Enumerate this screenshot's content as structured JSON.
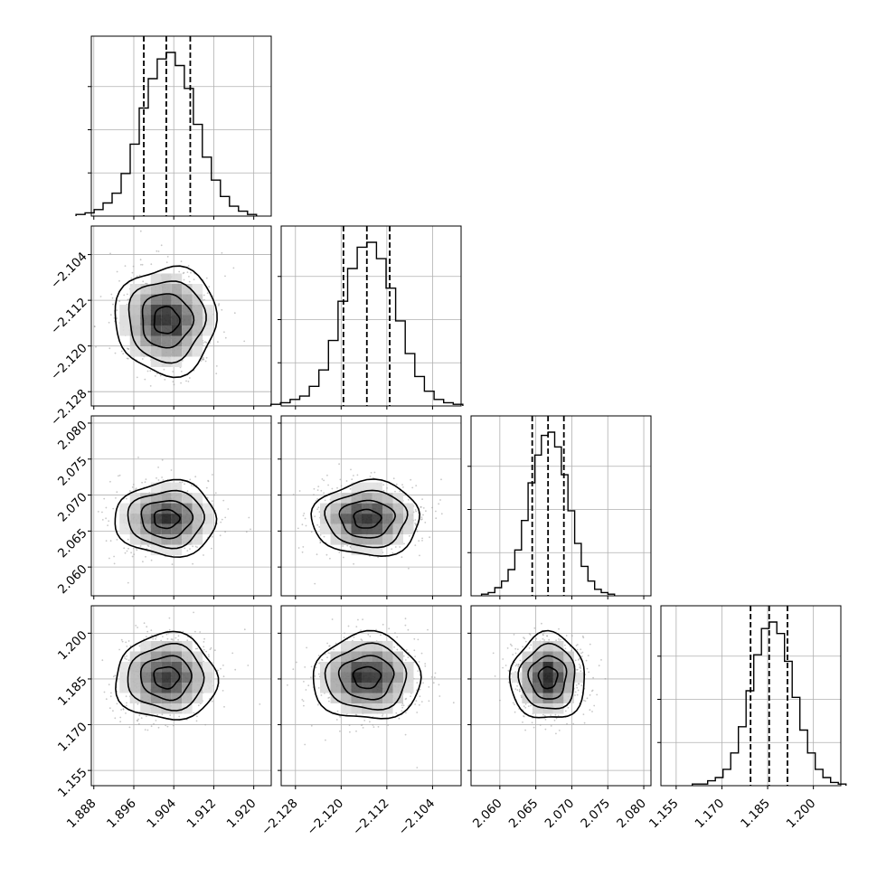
{
  "chart_data": {
    "type": "corner",
    "grid": true,
    "parameters": [
      {
        "ticks": [
          1.888,
          1.896,
          1.904,
          1.912,
          1.92
        ],
        "tick_labels": [
          "1.888",
          "1.896",
          "1.904",
          "1.912",
          "1.920"
        ],
        "range": [
          1.8875,
          1.9235
        ],
        "mean": 1.9025,
        "sigma": 0.0043,
        "quantiles": [
          1.898,
          1.9025,
          1.9073
        ]
      },
      {
        "ticks": [
          -2.128,
          -2.12,
          -2.112,
          -2.104
        ],
        "tick_labels": [
          "−2.128",
          "−2.120",
          "−2.112",
          "−2.104"
        ],
        "range": [
          -2.1305,
          -2.099
        ],
        "mean": -2.1155,
        "sigma": 0.004,
        "quantiles": [
          -2.1196,
          -2.1155,
          -2.1115
        ]
      },
      {
        "ticks": [
          2.06,
          2.065,
          2.07,
          2.075,
          2.08
        ],
        "tick_labels": [
          "2.060",
          "2.065",
          "2.070",
          "2.075",
          "2.080"
        ],
        "range": [
          2.056,
          2.081
        ],
        "mean": 2.0667,
        "sigma": 0.0022,
        "quantiles": [
          2.0645,
          2.0667,
          2.0689
        ]
      },
      {
        "ticks": [
          1.155,
          1.17,
          1.185,
          1.2
        ],
        "tick_labels": [
          "1.155",
          "1.170",
          "1.185",
          "1.200"
        ],
        "range": [
          1.15,
          1.209
        ],
        "mean": 1.1855,
        "sigma": 0.006,
        "quantiles": [
          1.1794,
          1.1855,
          1.1915
        ]
      }
    ],
    "histogram_bins": 20,
    "histogram_counts": [
      [
        1,
        2,
        4,
        8,
        14,
        26,
        44,
        66,
        84,
        96,
        100,
        92,
        78,
        56,
        36,
        22,
        12,
        6,
        3,
        1
      ],
      [
        1,
        2,
        4,
        6,
        12,
        22,
        40,
        64,
        84,
        97,
        100,
        90,
        72,
        52,
        32,
        18,
        9,
        4,
        2,
        1
      ],
      [
        1,
        2,
        5,
        9,
        16,
        28,
        46,
        69,
        86,
        98,
        100,
        91,
        74,
        52,
        32,
        18,
        9,
        4,
        2,
        1
      ],
      [
        1,
        1,
        3,
        5,
        10,
        20,
        36,
        58,
        80,
        96,
        100,
        93,
        76,
        54,
        34,
        20,
        10,
        5,
        2,
        1
      ]
    ],
    "contour_levels_sigma": [
      0.5,
      1.0,
      1.5,
      2.0
    ],
    "quantile_line_style": "dashed"
  }
}
